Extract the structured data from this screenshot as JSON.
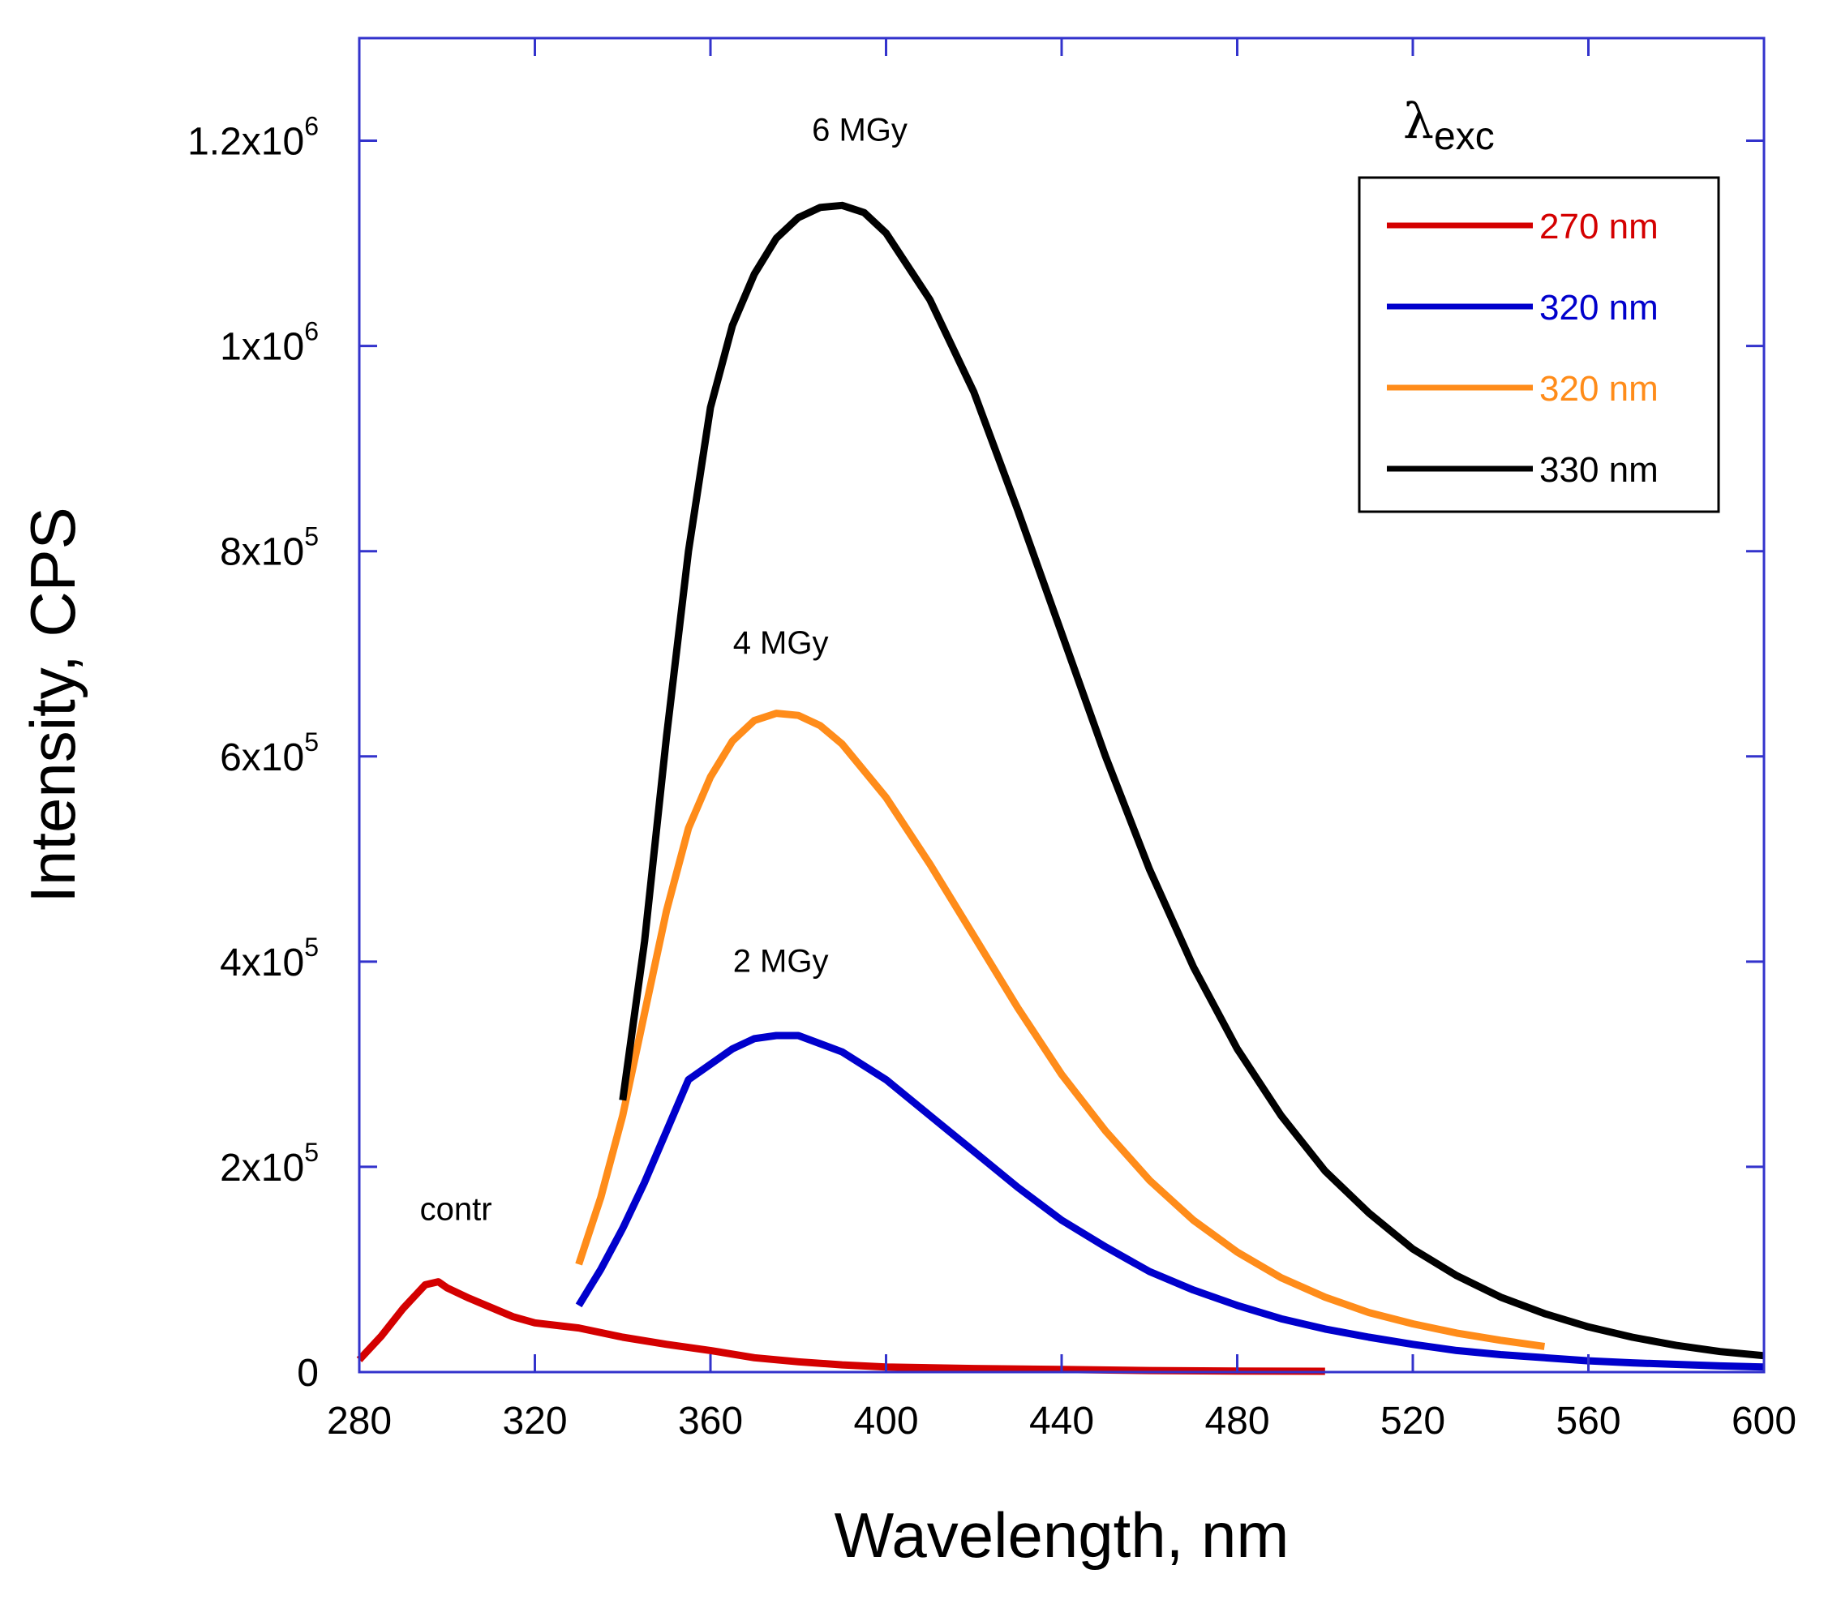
{
  "chart_data": {
    "type": "line",
    "title": "",
    "xlabel": "Wavelength, nm",
    "ylabel": "Intensity, CPS",
    "xlim": [
      280,
      600
    ],
    "ylim": [
      0,
      1300000
    ],
    "grid": false,
    "x_ticks": [
      280,
      320,
      360,
      400,
      440,
      480,
      520,
      560,
      600
    ],
    "x_tick_labels": [
      "280",
      "320",
      "360",
      "400",
      "440",
      "480",
      "520",
      "560",
      "600"
    ],
    "y_ticks": [
      {
        "value": 0,
        "mantissa": "0",
        "exponent": ""
      },
      {
        "value": 200000,
        "mantissa": "2x10",
        "exponent": "5"
      },
      {
        "value": 400000,
        "mantissa": "4x10",
        "exponent": "5"
      },
      {
        "value": 600000,
        "mantissa": "6x10",
        "exponent": "5"
      },
      {
        "value": 800000,
        "mantissa": "8x10",
        "exponent": "5"
      },
      {
        "value": 1000000,
        "mantissa": "1x10",
        "exponent": "6"
      },
      {
        "value": 1200000,
        "mantissa": "1.2x10",
        "exponent": "6"
      }
    ],
    "legend": {
      "title_symbol": "λ",
      "title_subscript": "exc",
      "position": "top-right"
    },
    "series": [
      {
        "name": "270 nm",
        "color": "#d40000",
        "annotation": "contr",
        "x": [
          280,
          285,
          290,
          295,
          298,
          300,
          305,
          310,
          315,
          320,
          330,
          340,
          350,
          360,
          370,
          380,
          390,
          400,
          420,
          440,
          460,
          480,
          500
        ],
        "y": [
          12000,
          35000,
          62000,
          85000,
          88000,
          82000,
          72000,
          63000,
          54000,
          48000,
          43000,
          34000,
          27000,
          21000,
          14000,
          10000,
          7000,
          5000,
          3500,
          2500,
          1500,
          1000,
          800
        ]
      },
      {
        "name": "320 nm",
        "color": "#0000cc",
        "annotation": "2 MGy",
        "x": [
          330,
          335,
          340,
          345,
          350,
          355,
          360,
          365,
          370,
          375,
          380,
          390,
          400,
          410,
          420,
          430,
          440,
          450,
          460,
          470,
          480,
          490,
          500,
          510,
          520,
          530,
          540,
          550,
          560,
          570,
          580,
          590,
          600
        ],
        "y": [
          65000,
          100000,
          140000,
          185000,
          235000,
          285000,
          300000,
          315000,
          325000,
          328000,
          328000,
          312000,
          285000,
          250000,
          215000,
          180000,
          148000,
          122000,
          98000,
          80000,
          65000,
          52000,
          42000,
          34000,
          27000,
          21000,
          17000,
          14000,
          11000,
          9000,
          7500,
          6000,
          5000
        ]
      },
      {
        "name": "320 nm",
        "color": "#ff8c1a",
        "annotation": "4 MGy",
        "x": [
          330,
          335,
          340,
          345,
          350,
          355,
          360,
          365,
          370,
          375,
          380,
          385,
          390,
          400,
          410,
          420,
          430,
          440,
          450,
          460,
          470,
          480,
          490,
          500,
          510,
          520,
          530,
          540,
          550
        ],
        "y": [
          105000,
          170000,
          250000,
          350000,
          450000,
          530000,
          580000,
          615000,
          635000,
          642000,
          640000,
          630000,
          612000,
          560000,
          495000,
          425000,
          355000,
          290000,
          235000,
          187000,
          148000,
          117000,
          92000,
          73000,
          58000,
          47000,
          38000,
          31000,
          25000
        ]
      },
      {
        "name": "330 nm",
        "color": "#000000",
        "annotation": "6 MGy",
        "x": [
          340,
          345,
          350,
          355,
          360,
          365,
          370,
          375,
          380,
          385,
          390,
          395,
          400,
          410,
          420,
          430,
          440,
          450,
          460,
          470,
          480,
          490,
          500,
          510,
          520,
          530,
          540,
          550,
          560,
          570,
          580,
          590,
          600
        ],
        "y": [
          265000,
          420000,
          620000,
          800000,
          940000,
          1020000,
          1070000,
          1105000,
          1125000,
          1135000,
          1137000,
          1130000,
          1110000,
          1045000,
          955000,
          840000,
          720000,
          600000,
          490000,
          395000,
          315000,
          250000,
          196000,
          155000,
          120000,
          94000,
          73000,
          57000,
          44000,
          34000,
          26000,
          20000,
          16000
        ]
      }
    ],
    "annotations": [
      {
        "text": "contr",
        "x": 302,
        "y": 148000
      },
      {
        "text": "2 MGy",
        "x": 376,
        "y": 390000
      },
      {
        "text": "4 MGy",
        "x": 376,
        "y": 700000
      },
      {
        "text": "6 MGy",
        "x": 394,
        "y": 1200000
      }
    ]
  }
}
